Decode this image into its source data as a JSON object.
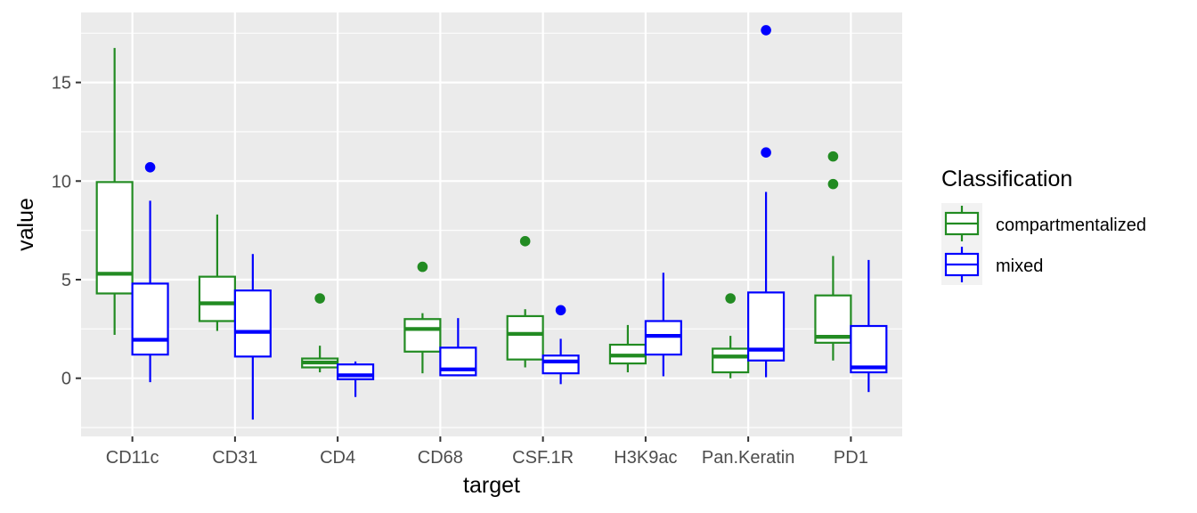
{
  "chart_data": {
    "type": "boxplot",
    "xlabel": "target",
    "ylabel": "value",
    "categories": [
      "CD11c",
      "CD31",
      "CD4",
      "CD68",
      "CSF.1R",
      "H3K9ac",
      "Pan.Keratin",
      "PD1"
    ],
    "y_ticks": [
      0,
      5,
      10,
      15
    ],
    "ylim": [
      -2.95,
      18.55
    ],
    "grid": true,
    "legend": {
      "title": "Classification",
      "position": "right",
      "entries": [
        "compartmentalized",
        "mixed"
      ]
    },
    "series": [
      {
        "name": "compartmentalized",
        "color": "#228B22",
        "boxes": [
          {
            "whisker_low": 2.2,
            "q1": 4.3,
            "median": 5.3,
            "q3": 9.95,
            "whisker_high": 16.75,
            "outliers": []
          },
          {
            "whisker_low": 2.4,
            "q1": 2.9,
            "median": 3.8,
            "q3": 5.15,
            "whisker_high": 8.3,
            "outliers": []
          },
          {
            "whisker_low": 0.3,
            "q1": 0.55,
            "median": 0.8,
            "q3": 1.0,
            "whisker_high": 1.65,
            "outliers": [
              4.05
            ]
          },
          {
            "whisker_low": 0.25,
            "q1": 1.35,
            "median": 2.5,
            "q3": 3.0,
            "whisker_high": 3.3,
            "outliers": [
              5.65
            ]
          },
          {
            "whisker_low": 0.55,
            "q1": 0.95,
            "median": 2.25,
            "q3": 3.15,
            "whisker_high": 3.5,
            "outliers": [
              6.95
            ]
          },
          {
            "whisker_low": 0.3,
            "q1": 0.75,
            "median": 1.15,
            "q3": 1.7,
            "whisker_high": 2.7,
            "outliers": []
          },
          {
            "whisker_low": 0.0,
            "q1": 0.3,
            "median": 1.1,
            "q3": 1.5,
            "whisker_high": 2.15,
            "outliers": [
              4.05
            ]
          },
          {
            "whisker_low": 0.9,
            "q1": 1.8,
            "median": 2.1,
            "q3": 4.2,
            "whisker_high": 6.2,
            "outliers": [
              9.85,
              11.25
            ]
          }
        ]
      },
      {
        "name": "mixed",
        "color": "#0000FF",
        "boxes": [
          {
            "whisker_low": -0.2,
            "q1": 1.2,
            "median": 1.95,
            "q3": 4.8,
            "whisker_high": 9.0,
            "outliers": [
              10.7
            ]
          },
          {
            "whisker_low": -2.1,
            "q1": 1.1,
            "median": 2.35,
            "q3": 4.45,
            "whisker_high": 6.3,
            "outliers": []
          },
          {
            "whisker_low": -0.95,
            "q1": -0.05,
            "median": 0.15,
            "q3": 0.7,
            "whisker_high": 0.85,
            "outliers": []
          },
          {
            "whisker_low": 0.1,
            "q1": 0.15,
            "median": 0.45,
            "q3": 1.55,
            "whisker_high": 3.05,
            "outliers": []
          },
          {
            "whisker_low": -0.3,
            "q1": 0.25,
            "median": 0.85,
            "q3": 1.15,
            "whisker_high": 2.0,
            "outliers": [
              3.45
            ]
          },
          {
            "whisker_low": 0.1,
            "q1": 1.2,
            "median": 2.15,
            "q3": 2.9,
            "whisker_high": 5.35,
            "outliers": []
          },
          {
            "whisker_low": 0.05,
            "q1": 0.9,
            "median": 1.45,
            "q3": 4.35,
            "whisker_high": 9.45,
            "outliers": [
              11.45,
              17.65
            ]
          },
          {
            "whisker_low": -0.7,
            "q1": 0.3,
            "median": 0.55,
            "q3": 2.65,
            "whisker_high": 6.0,
            "outliers": []
          }
        ]
      }
    ]
  },
  "colors": {
    "panel_background": "#EBEBEB",
    "grid_line": "#FFFFFF",
    "tick_text": "#4D4D4D",
    "tick_mark": "#333333"
  }
}
